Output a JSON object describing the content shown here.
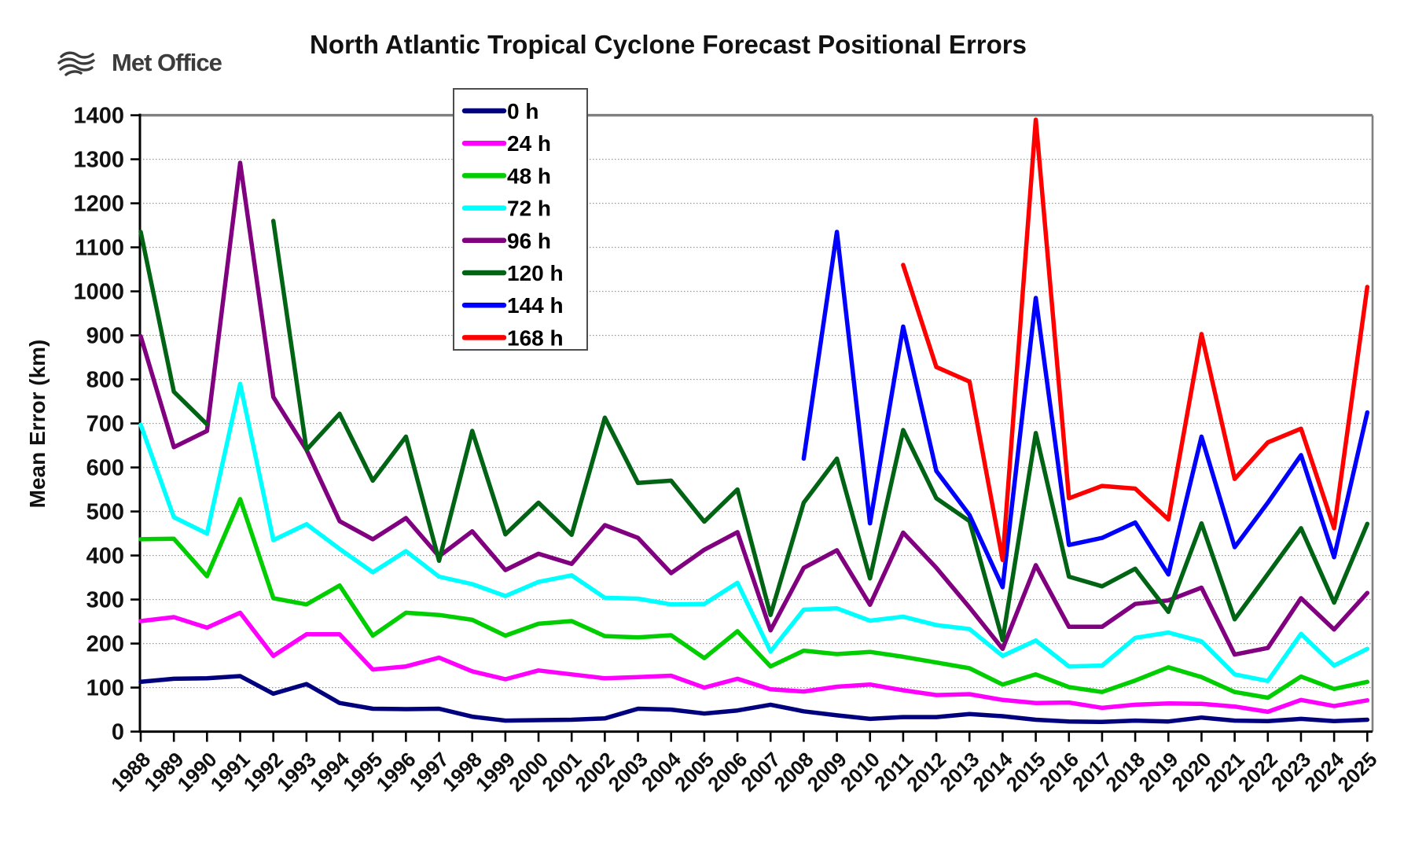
{
  "logo": {
    "text": "Met Office"
  },
  "chart_data": {
    "type": "line",
    "title": "North Atlantic Tropical Cyclone Forecast Positional Errors",
    "ylabel": "Mean Error (km)",
    "xlabel": "",
    "x": [
      1988,
      1989,
      1990,
      1991,
      1992,
      1993,
      1994,
      1995,
      1996,
      1997,
      1998,
      1999,
      2000,
      2001,
      2002,
      2003,
      2004,
      2005,
      2006,
      2007,
      2008,
      2009,
      2010,
      2011,
      2012,
      2013,
      2014,
      2015,
      2016,
      2017,
      2018,
      2019,
      2020,
      2021,
      2022,
      2023,
      2024,
      2025
    ],
    "ylim": [
      0,
      1400
    ],
    "ytick_step": 100,
    "grid": "horizontal-dotted",
    "legend_position": "top-center-inside",
    "series": [
      {
        "name": "0 h",
        "color": "#00007E",
        "values": [
          113,
          120,
          121,
          126,
          86,
          108,
          65,
          52,
          51,
          52,
          34,
          25,
          26,
          27,
          30,
          52,
          50,
          41,
          48,
          61,
          46,
          37,
          29,
          33,
          33,
          40,
          35,
          27,
          23,
          22,
          25,
          23,
          32,
          25,
          24,
          29,
          24,
          27
        ]
      },
      {
        "name": "24 h",
        "color": "#FF00FF",
        "values": [
          251,
          260,
          236,
          270,
          172,
          221,
          221,
          141,
          148,
          168,
          137,
          119,
          139,
          130,
          121,
          124,
          127,
          100,
          120,
          96,
          91,
          102,
          107,
          94,
          83,
          85,
          72,
          65,
          66,
          54,
          61,
          64,
          63,
          57,
          45,
          72,
          58,
          71
        ]
      },
      {
        "name": "48 h",
        "color": "#00CE00",
        "values": [
          437,
          438,
          353,
          528,
          303,
          289,
          332,
          218,
          270,
          265,
          254,
          218,
          245,
          251,
          217,
          214,
          219,
          167,
          228,
          148,
          184,
          176,
          181,
          170,
          157,
          144,
          107,
          130,
          101,
          90,
          116,
          146,
          124,
          90,
          77,
          125,
          97,
          113
        ]
      },
      {
        "name": "72 h",
        "color": "#00FFFF",
        "values": [
          697,
          487,
          450,
          790,
          435,
          471,
          415,
          362,
          410,
          352,
          335,
          308,
          340,
          355,
          304,
          302,
          289,
          290,
          338,
          182,
          277,
          280,
          252,
          261,
          242,
          233,
          172,
          207,
          148,
          150,
          213,
          225,
          205,
          130,
          115,
          222,
          150,
          188
        ]
      },
      {
        "name": "96 h",
        "color": "#800080",
        "values": [
          898,
          646,
          683,
          1292,
          760,
          640,
          478,
          437,
          485,
          398,
          455,
          367,
          404,
          381,
          469,
          440,
          360,
          413,
          453,
          230,
          372,
          412,
          288,
          452,
          372,
          282,
          188,
          378,
          238,
          238,
          290,
          298,
          327,
          175,
          190,
          303,
          232,
          315
        ]
      },
      {
        "name": "120 h",
        "color": "#006414",
        "values": [
          1135,
          772,
          698,
          null,
          1160,
          640,
          722,
          570,
          670,
          388,
          683,
          448,
          520,
          447,
          713,
          565,
          570,
          477,
          550,
          265,
          520,
          620,
          348,
          685,
          530,
          478,
          208,
          678,
          352,
          330,
          370,
          272,
          473,
          255,
          358,
          462,
          293,
          472
        ]
      },
      {
        "name": "144 h",
        "color": "#0000FF",
        "values": [
          null,
          null,
          null,
          null,
          null,
          null,
          null,
          null,
          null,
          null,
          null,
          null,
          null,
          null,
          null,
          null,
          null,
          null,
          null,
          null,
          620,
          1135,
          473,
          920,
          592,
          492,
          328,
          985,
          424,
          440,
          475,
          357,
          670,
          419,
          520,
          628,
          396,
          725
        ]
      },
      {
        "name": "168 h",
        "color": "#FF0000",
        "values": [
          null,
          null,
          null,
          null,
          null,
          null,
          null,
          null,
          null,
          null,
          null,
          null,
          null,
          null,
          null,
          null,
          null,
          null,
          null,
          null,
          null,
          null,
          null,
          1060,
          828,
          795,
          390,
          1390,
          530,
          558,
          552,
          482,
          903,
          574,
          657,
          688,
          462,
          1010
        ]
      }
    ]
  }
}
